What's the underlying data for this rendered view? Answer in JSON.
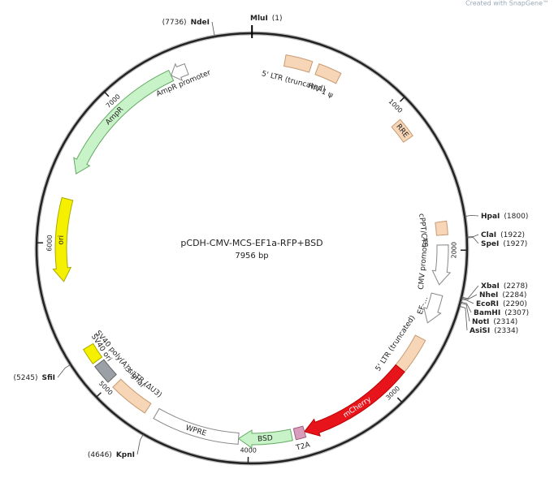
{
  "watermark": "Created with SnapGene™",
  "plasmid": {
    "name": "pCDH-CMV-MCS-EF1a-RFP+BSD",
    "length": 7956,
    "length_label": "7956 bp"
  },
  "ticks": [
    1000,
    2000,
    3000,
    4000,
    5000,
    6000,
    7000
  ],
  "sites": [
    {
      "name": "MluI",
      "position": 1,
      "position_label": "(1)"
    },
    {
      "name": "NdeI",
      "position": 7736,
      "position_label": "(7736)"
    },
    {
      "name": "HpaI",
      "position": 1800,
      "position_label": "(1800)"
    },
    {
      "name": "ClaI",
      "position": 1922,
      "position_label": "(1922)"
    },
    {
      "name": "SpeI",
      "position": 1927,
      "position_label": "(1927)"
    },
    {
      "name": "XbaI",
      "position": 2278,
      "position_label": "(2278)"
    },
    {
      "name": "NheI",
      "position": 2284,
      "position_label": "(2284)"
    },
    {
      "name": "EcoRI",
      "position": 2290,
      "position_label": "(2290)"
    },
    {
      "name": "BamHI",
      "position": 2307,
      "position_label": "(2307)"
    },
    {
      "name": "NotI",
      "position": 2314,
      "position_label": "(2314)"
    },
    {
      "name": "AsiSI",
      "position": 2334,
      "position_label": "(2334)"
    },
    {
      "name": "SfiI",
      "position": 5245,
      "position_label": "(5245)"
    },
    {
      "name": "KpnI",
      "position": 4646,
      "position_label": "(4646)"
    }
  ],
  "features": [
    {
      "label": "5' LTR (truncated)"
    },
    {
      "label": "HIV-1 ψ"
    },
    {
      "label": "RRE"
    },
    {
      "label": "cPPT/CTS"
    },
    {
      "label": "CMV promoter"
    },
    {
      "label": "EF-..."
    },
    {
      "label": "5' LTR (truncated)"
    },
    {
      "label": "mCherry"
    },
    {
      "label": "T2A"
    },
    {
      "label": "BSD"
    },
    {
      "label": "WPRE"
    },
    {
      "label": "3' LTR (ΔU3)"
    },
    {
      "label": "SV40 poly(A) signal"
    },
    {
      "label": "SV40 ori"
    },
    {
      "label": "ori"
    },
    {
      "label": "AmpR"
    },
    {
      "label": "AmpR promoter"
    }
  ]
}
